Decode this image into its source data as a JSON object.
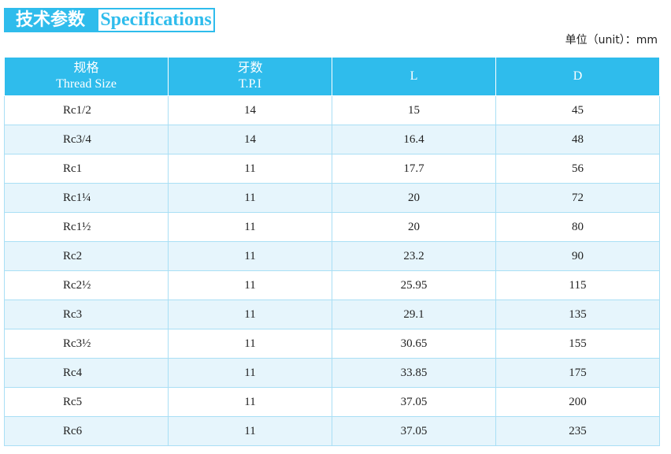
{
  "header": {
    "title_zh": "技术参数",
    "title_en": "Specifications",
    "unit": "单位（unit）：mm"
  },
  "table": {
    "columns": [
      [
        "规格",
        "Thread Size"
      ],
      [
        "牙数",
        "T.P.I"
      ],
      [
        "L"
      ],
      [
        "D"
      ]
    ],
    "rows": [
      [
        "Rc1/2",
        "14",
        "15",
        "45"
      ],
      [
        "Rc3/4",
        "14",
        "16.4",
        "48"
      ],
      [
        "Rc1",
        "11",
        "17.7",
        "56"
      ],
      [
        "Rc1¼",
        "11",
        "20",
        "72"
      ],
      [
        "Rc1½",
        "11",
        "20",
        "80"
      ],
      [
        "Rc2",
        "11",
        "23.2",
        "90"
      ],
      [
        "Rc2½",
        "11",
        "25.95",
        "115"
      ],
      [
        "Rc3",
        "11",
        "29.1",
        "135"
      ],
      [
        "Rc3½",
        "11",
        "30.65",
        "155"
      ],
      [
        "Rc4",
        "11",
        "33.85",
        "175"
      ],
      [
        "Rc5",
        "11",
        "37.05",
        "200"
      ],
      [
        "Rc6",
        "11",
        "37.05",
        "235"
      ]
    ]
  }
}
